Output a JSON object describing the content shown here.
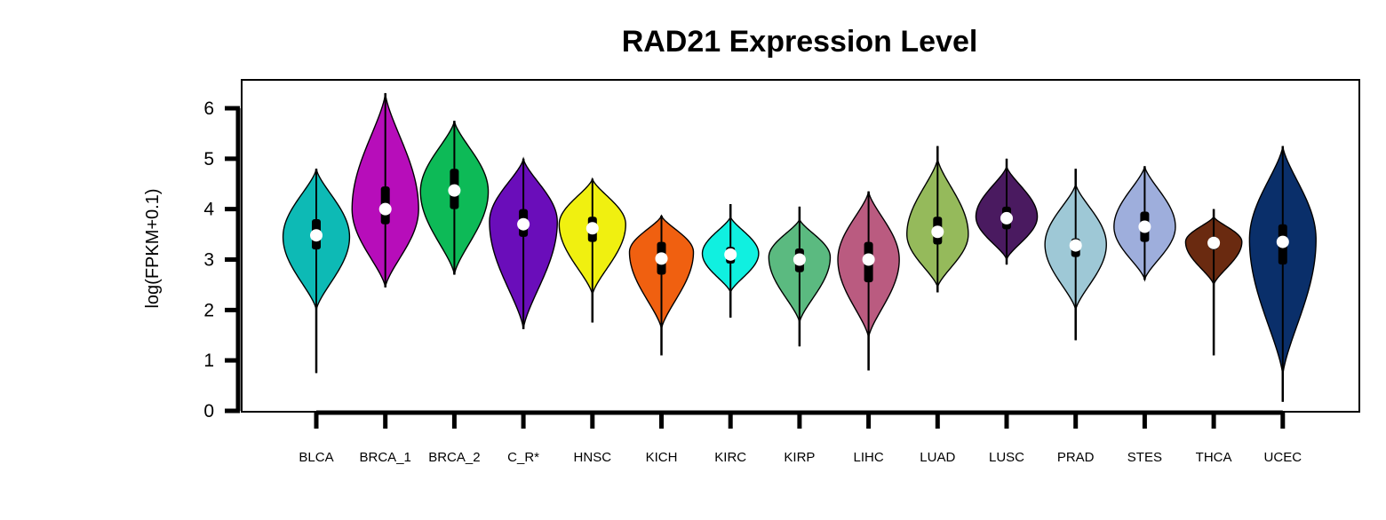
{
  "chart_data": {
    "type": "violin",
    "title": "RAD21 Expression Level",
    "xlabel": "",
    "ylabel": "log(FPKM+0.1)",
    "ylim": [
      0,
      6
    ],
    "yticks": [
      "0",
      "1",
      "2",
      "3",
      "4",
      "5",
      "6"
    ],
    "grid": false,
    "legend": "none",
    "categories": [
      "BLCA",
      "BRCA_1",
      "BRCA_2",
      "C_R*",
      "HNSC",
      "KICH",
      "KIRC",
      "KIRP",
      "LIHC",
      "LUAD",
      "LUSC",
      "PRAD",
      "STES",
      "THCA",
      "UCEC"
    ],
    "series": [
      {
        "category": "BLCA",
        "color": "#0DBAB5",
        "min": 0.75,
        "max": 4.8,
        "q1": 3.2,
        "median": 3.48,
        "q3": 3.8,
        "vmin": 2.0,
        "vmax": 4.8,
        "peak": 3.45,
        "width": 0.52
      },
      {
        "category": "BRCA_1",
        "color": "#B70DBA",
        "min": 2.45,
        "max": 6.3,
        "q1": 3.7,
        "median": 4.0,
        "q3": 4.45,
        "vmin": 2.45,
        "vmax": 6.3,
        "peak": 4.0,
        "width": 0.52
      },
      {
        "category": "BRCA_2",
        "color": "#0DBA57",
        "min": 2.7,
        "max": 5.75,
        "q1": 4.0,
        "median": 4.37,
        "q3": 4.8,
        "vmin": 2.7,
        "vmax": 5.75,
        "peak": 4.35,
        "width": 0.53
      },
      {
        "category": "C_R*",
        "color": "#6A0DBA",
        "min": 1.62,
        "max": 5.0,
        "q1": 3.45,
        "median": 3.7,
        "q3": 4.0,
        "vmin": 1.62,
        "vmax": 5.0,
        "peak": 3.75,
        "width": 0.53
      },
      {
        "category": "HNSC",
        "color": "#F0F010",
        "min": 1.75,
        "max": 4.6,
        "q1": 3.35,
        "median": 3.62,
        "q3": 3.85,
        "vmin": 2.3,
        "vmax": 4.6,
        "peak": 3.7,
        "width": 0.52
      },
      {
        "category": "KICH",
        "color": "#F06010",
        "min": 1.1,
        "max": 3.87,
        "q1": 2.7,
        "median": 3.02,
        "q3": 3.35,
        "vmin": 1.62,
        "vmax": 3.87,
        "peak": 3.15,
        "width": 0.5
      },
      {
        "category": "KIRC",
        "color": "#10F0E0",
        "min": 1.85,
        "max": 4.1,
        "q1": 2.92,
        "median": 3.1,
        "q3": 3.25,
        "vmin": 2.35,
        "vmax": 3.85,
        "peak": 3.12,
        "width": 0.44
      },
      {
        "category": "KIRP",
        "color": "#5BBA80",
        "min": 1.28,
        "max": 4.05,
        "q1": 2.75,
        "median": 3.0,
        "q3": 3.22,
        "vmin": 1.75,
        "vmax": 3.8,
        "peak": 3.05,
        "width": 0.48
      },
      {
        "category": "LIHC",
        "color": "#BA5B80",
        "min": 0.8,
        "max": 4.35,
        "q1": 2.55,
        "median": 3.0,
        "q3": 3.35,
        "vmin": 1.45,
        "vmax": 4.35,
        "peak": 3.0,
        "width": 0.48
      },
      {
        "category": "LUAD",
        "color": "#95BA5B",
        "min": 2.35,
        "max": 5.25,
        "q1": 3.3,
        "median": 3.55,
        "q3": 3.85,
        "vmin": 2.45,
        "vmax": 5.0,
        "peak": 3.5,
        "width": 0.48
      },
      {
        "category": "LUSC",
        "color": "#4A1A60",
        "min": 2.9,
        "max": 5.0,
        "q1": 3.6,
        "median": 3.82,
        "q3": 4.05,
        "vmin": 3.0,
        "vmax": 4.85,
        "peak": 3.85,
        "width": 0.48
      },
      {
        "category": "PRAD",
        "color": "#9EC8D6",
        "min": 1.4,
        "max": 4.8,
        "q1": 3.05,
        "median": 3.28,
        "q3": 3.42,
        "vmin": 2.0,
        "vmax": 4.5,
        "peak": 3.3,
        "width": 0.48
      },
      {
        "category": "STES",
        "color": "#9EAEDC",
        "min": 2.6,
        "max": 4.85,
        "q1": 3.35,
        "median": 3.65,
        "q3": 3.95,
        "vmin": 2.6,
        "vmax": 4.85,
        "peak": 3.65,
        "width": 0.48
      },
      {
        "category": "THCA",
        "color": "#6A2A10",
        "min": 1.1,
        "max": 4.0,
        "q1": 3.2,
        "median": 3.33,
        "q3": 3.45,
        "vmin": 2.5,
        "vmax": 3.85,
        "peak": 3.35,
        "width": 0.44
      },
      {
        "category": "UCEC",
        "color": "#0A2F6A",
        "min": 0.18,
        "max": 5.25,
        "q1": 2.9,
        "median": 3.35,
        "q3": 3.7,
        "vmin": 0.7,
        "vmax": 5.25,
        "peak": 3.4,
        "width": 0.52
      }
    ]
  }
}
